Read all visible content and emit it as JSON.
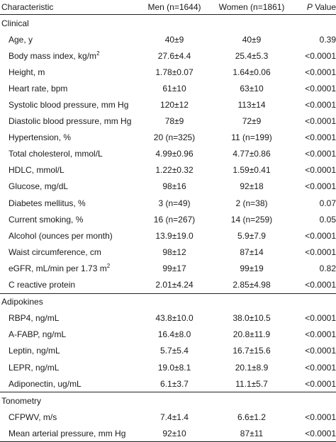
{
  "header": {
    "characteristic": "Characteristic",
    "men": "Men (n=1644)",
    "women": "Women (n=1861)",
    "p_italic": "P",
    "p_rest": " Value"
  },
  "sections": [
    {
      "title": "Clinical",
      "rows": [
        {
          "label": "Age, y",
          "men": "40±9",
          "women": "40±9",
          "p": "0.39"
        },
        {
          "label": "Body mass index, kg/m",
          "sup": "2",
          "men": "27.6±4.4",
          "women": "25.4±5.3",
          "p": "<0.0001"
        },
        {
          "label": "Height, m",
          "men": "1.78±0.07",
          "women": "1.64±0.06",
          "p": "<0.0001"
        },
        {
          "label": "Heart rate, bpm",
          "men": "61±10",
          "women": "63±10",
          "p": "<0.0001"
        },
        {
          "label": "Systolic blood pressure, mm Hg",
          "men": "120±12",
          "women": "113±14",
          "p": "<0.0001"
        },
        {
          "label": "Diastolic blood pressure, mm Hg",
          "men": "78±9",
          "women": "72±9",
          "p": "<0.0001"
        },
        {
          "label": "Hypertension, %",
          "men": "20 (n=325)",
          "women": "11 (n=199)",
          "p": "<0.0001"
        },
        {
          "label": "Total cholesterol, mmol/L",
          "men": "4.99±0.96",
          "women": "4.77±0.86",
          "p": "<0.0001"
        },
        {
          "label": "HDLC, mmol/L",
          "men": "1.22±0.32",
          "women": "1.59±0.41",
          "p": "<0.0001"
        },
        {
          "label": "Glucose, mg/dL",
          "men": "98±16",
          "women": "92±18",
          "p": "<0.0001"
        },
        {
          "label": "Diabetes mellitus, %",
          "men": "3 (n=49)",
          "women": "2 (n=38)",
          "p": "0.07"
        },
        {
          "label": "Current smoking, %",
          "men": "16 (n=267)",
          "women": "14 (n=259)",
          "p": "0.05"
        },
        {
          "label": "Alcohol (ounces per month)",
          "men": "13.9±19.0",
          "women": "5.9±7.9",
          "p": "<0.0001"
        },
        {
          "label": "Waist circumference, cm",
          "men": "98±12",
          "women": "87±14",
          "p": "<0.0001"
        },
        {
          "label": "eGFR, mL/min per 1.73 m",
          "sup": "2",
          "men": "99±17",
          "women": "99±19",
          "p": "0.82"
        },
        {
          "label": "C reactive protein",
          "men": "2.01±4.24",
          "women": "2.85±4.98",
          "p": "<0.0001"
        }
      ]
    },
    {
      "title": "Adipokines",
      "rows": [
        {
          "label": "RBP4, ng/mL",
          "men": "43.8±10.0",
          "women": "38.0±10.5",
          "p": "<0.0001"
        },
        {
          "label": "A-FABP, ng/mL",
          "men": "16.4±8.0",
          "women": "20.8±11.9",
          "p": "<0.0001"
        },
        {
          "label": "Leptin, ng/mL",
          "men": "5.7±5.4",
          "women": "16.7±15.6",
          "p": "<0.0001"
        },
        {
          "label": "LEPR, ng/mL",
          "men": "19.0±8.1",
          "women": "20.1±8.9",
          "p": "<0.0001"
        },
        {
          "label": "Adiponectin, ug/mL",
          "men": "6.1±3.7",
          "women": "11.1±5.7",
          "p": "<0.0001"
        }
      ]
    },
    {
      "title": "Tonometry",
      "rows": [
        {
          "label": "CFPWV, m/s",
          "men": "7.4±1.4",
          "women": "6.6±1.2",
          "p": "<0.0001"
        },
        {
          "label": "Mean arterial pressure, mm Hg",
          "men": "92±10",
          "women": "87±11",
          "p": "<0.0001"
        }
      ]
    }
  ]
}
